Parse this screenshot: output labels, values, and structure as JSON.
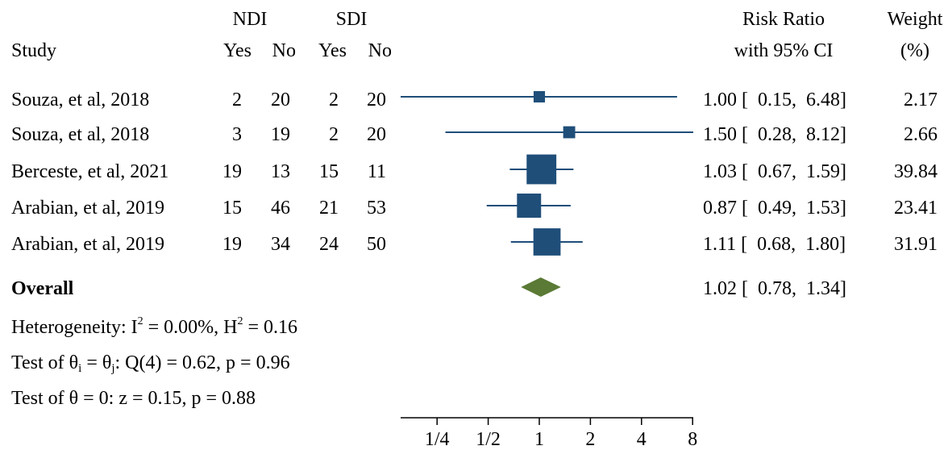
{
  "chart_data": {
    "type": "forest",
    "headers": {
      "ndi": "NDI",
      "sdi": "SDI",
      "study": "Study",
      "yes": "Yes",
      "no": "No",
      "rr_line1": "Risk Ratio",
      "rr_line2": "with 95% CI",
      "weight_line1": "Weight",
      "weight_line2": "(%)"
    },
    "studies": [
      {
        "label": "Souza, et al, 2018",
        "ndi_yes": "2",
        "ndi_no": "20",
        "sdi_yes": "2",
        "sdi_no": "20",
        "rr": 1.0,
        "lo": 0.15,
        "hi": 6.48,
        "ci_text": "1.00 [  0.15,  6.48]",
        "weight": 2.17,
        "weight_text": "2.17"
      },
      {
        "label": "Souza, et al, 2018",
        "ndi_yes": "3",
        "ndi_no": "19",
        "sdi_yes": "2",
        "sdi_no": "20",
        "rr": 1.5,
        "lo": 0.28,
        "hi": 8.12,
        "ci_text": "1.50 [  0.28,  8.12]",
        "weight": 2.66,
        "weight_text": "2.66"
      },
      {
        "label": "Berceste, et al, 2021",
        "ndi_yes": "19",
        "ndi_no": "13",
        "sdi_yes": "15",
        "sdi_no": "11",
        "rr": 1.03,
        "lo": 0.67,
        "hi": 1.59,
        "ci_text": "1.03 [  0.67,  1.59]",
        "weight": 39.84,
        "weight_text": "39.84"
      },
      {
        "label": "Arabian, et al, 2019",
        "ndi_yes": "15",
        "ndi_no": "46",
        "sdi_yes": "21",
        "sdi_no": "53",
        "rr": 0.87,
        "lo": 0.49,
        "hi": 1.53,
        "ci_text": "0.87 [  0.49,  1.53]",
        "weight": 23.41,
        "weight_text": "23.41"
      },
      {
        "label": "Arabian, et al, 2019",
        "ndi_yes": "19",
        "ndi_no": "34",
        "sdi_yes": "24",
        "sdi_no": "50",
        "rr": 1.11,
        "lo": 0.68,
        "hi": 1.8,
        "ci_text": "1.11 [  0.68,  1.80]",
        "weight": 31.91,
        "weight_text": "31.91"
      }
    ],
    "overall": {
      "label": "Overall",
      "rr": 1.02,
      "lo": 0.78,
      "hi": 1.34,
      "ci_text": "1.02 [  0.78,  1.34]"
    },
    "heterogeneity": {
      "prefix": "Heterogeneity: I",
      "i2_sup": "2",
      "i2_value": " = 0.00%, H",
      "h2_sup": "2",
      "h2_value": " = 0.16"
    },
    "test_homogeneity": {
      "prefix": "Test of θ",
      "sub_i": "i",
      "eq": " = θ",
      "sub_j": "j",
      "rest": ": Q(4) = 0.62, p = 0.96"
    },
    "test_effect": "Test of θ = 0: z = 0.15, p = 0.88",
    "x_axis": {
      "scale": "log2",
      "ticks": [
        0.25,
        0.5,
        1,
        2,
        4,
        8
      ],
      "tick_labels": [
        "1/4",
        "1/2",
        "1",
        "2",
        "4",
        "8"
      ]
    },
    "colors": {
      "study": "#1f4e79",
      "overall": "#5a7a35",
      "text": "#000000"
    }
  }
}
